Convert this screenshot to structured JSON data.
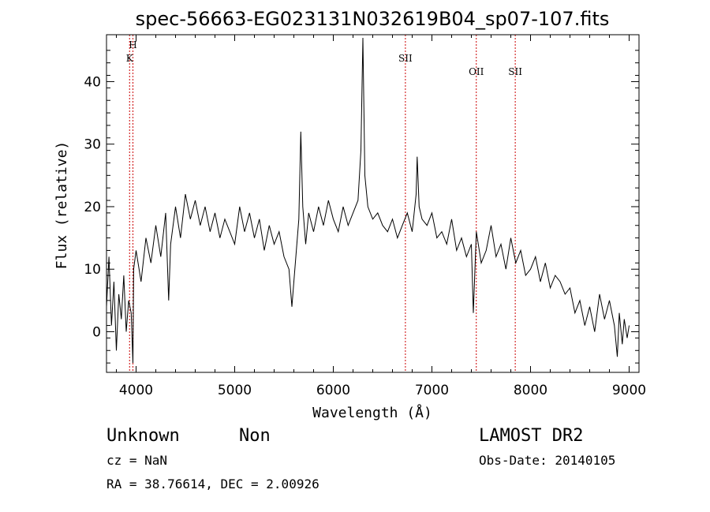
{
  "chart_data": {
    "type": "line",
    "title": "spec-56663-EG023131N032619B04_sp07-107.fits",
    "xlabel": "Wavelength (Å)",
    "ylabel": "Flux (relative)",
    "xlim": [
      3700,
      9100
    ],
    "ylim": [
      -6.5,
      47.5
    ],
    "x_ticks": [
      4000,
      5000,
      6000,
      7000,
      8000,
      9000
    ],
    "y_ticks": [
      0,
      10,
      20,
      30,
      40
    ],
    "grid": false,
    "series": [
      {
        "x": [
          3700,
          3725,
          3750,
          3775,
          3800,
          3825,
          3850,
          3875,
          3900,
          3925,
          3950,
          3968,
          3975,
          4000,
          4050,
          4100,
          4150,
          4200,
          4250,
          4300,
          4330,
          4350,
          4400,
          4450,
          4500,
          4550,
          4600,
          4650,
          4700,
          4750,
          4800,
          4850,
          4900,
          4950,
          5000,
          5050,
          5100,
          5150,
          5200,
          5250,
          5300,
          5350,
          5400,
          5450,
          5500,
          5550,
          5580,
          5600,
          5650,
          5670,
          5690,
          5720,
          5750,
          5800,
          5850,
          5900,
          5950,
          6000,
          6050,
          6100,
          6150,
          6200,
          6250,
          6280,
          6300,
          6320,
          6350,
          6400,
          6450,
          6500,
          6550,
          6600,
          6650,
          6700,
          6750,
          6800,
          6840,
          6850,
          6870,
          6900,
          6950,
          7000,
          7050,
          7100,
          7150,
          7200,
          7250,
          7300,
          7350,
          7400,
          7420,
          7450,
          7500,
          7550,
          7600,
          7650,
          7700,
          7750,
          7800,
          7850,
          7900,
          7950,
          8000,
          8050,
          8100,
          8150,
          8200,
          8250,
          8300,
          8350,
          8400,
          8450,
          8500,
          8550,
          8600,
          8650,
          8700,
          8750,
          8800,
          8850,
          8880,
          8900,
          8930,
          8950,
          8980,
          9000
        ],
        "y": [
          4,
          12,
          1,
          8,
          -3,
          6,
          2,
          9,
          0,
          5,
          3,
          -5,
          10,
          13,
          8,
          15,
          11,
          17,
          12,
          19,
          5,
          14,
          20,
          15,
          22,
          18,
          21,
          17,
          20,
          16,
          19,
          15,
          18,
          16,
          14,
          20,
          16,
          19,
          15,
          18,
          13,
          17,
          14,
          16,
          12,
          10,
          4,
          8,
          18,
          32,
          20,
          14,
          19,
          16,
          20,
          17,
          21,
          18,
          16,
          20,
          17,
          19,
          21,
          29,
          47,
          25,
          20,
          18,
          19,
          17,
          16,
          18,
          15,
          17,
          19,
          16,
          22,
          28,
          20,
          18,
          17,
          19,
          15,
          16,
          14,
          18,
          13,
          15,
          12,
          14,
          3,
          16,
          11,
          13,
          17,
          12,
          14,
          10,
          15,
          11,
          13,
          9,
          10,
          12,
          8,
          11,
          7,
          9,
          8,
          6,
          7,
          3,
          5,
          1,
          4,
          0,
          6,
          2,
          5,
          1,
          -4,
          3,
          -2,
          2,
          -1,
          1
        ]
      }
    ],
    "lines": [
      {
        "label": "H",
        "x": 3968
      },
      {
        "label": "K",
        "x": 3934
      },
      {
        "label": "SII",
        "x": 6731
      },
      {
        "label": "OII",
        "x": 7450
      },
      {
        "label": "SII",
        "x": 7845
      }
    ],
    "line_color": "#cc0000"
  },
  "info": {
    "class_label": "Unknown",
    "subclass_label": "Non",
    "survey": "LAMOST DR2",
    "cz": "cz = NaN",
    "obs_date": "Obs-Date: 20140105",
    "radec": "RA =  38.76614, DEC =   2.00926"
  }
}
